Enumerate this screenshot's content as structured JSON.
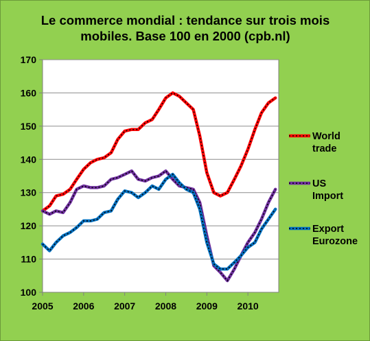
{
  "chart_data": {
    "type": "line",
    "title_line1": "Le commerce mondial : tendance sur trois mois",
    "title_line2": "mobiles. Base 100 en 2000 (cpb.nl)",
    "xlabel": "",
    "ylabel": "",
    "xlim": [
      2005,
      2010.75
    ],
    "ylim": [
      100,
      170
    ],
    "y_ticks": [
      100,
      110,
      120,
      130,
      140,
      150,
      160,
      170
    ],
    "x_ticks": [
      2005,
      2006,
      2007,
      2008,
      2009,
      2010
    ],
    "grid": "horizontal",
    "legend_position": "right",
    "series": [
      {
        "name_line1": "World",
        "name_line2": "trade",
        "color": "#ff0000",
        "points": [
          [
            2005.0,
            124.5
          ],
          [
            2005.17,
            126
          ],
          [
            2005.33,
            129
          ],
          [
            2005.5,
            129.5
          ],
          [
            2005.67,
            131
          ],
          [
            2005.83,
            134
          ],
          [
            2006.0,
            137
          ],
          [
            2006.17,
            139
          ],
          [
            2006.33,
            140
          ],
          [
            2006.5,
            140.5
          ],
          [
            2006.67,
            142
          ],
          [
            2006.83,
            146
          ],
          [
            2007.0,
            148.5
          ],
          [
            2007.17,
            149
          ],
          [
            2007.33,
            149
          ],
          [
            2007.5,
            151
          ],
          [
            2007.67,
            152
          ],
          [
            2007.83,
            155
          ],
          [
            2008.0,
            158.5
          ],
          [
            2008.17,
            160
          ],
          [
            2008.33,
            159
          ],
          [
            2008.5,
            157
          ],
          [
            2008.67,
            155
          ],
          [
            2008.83,
            147
          ],
          [
            2009.0,
            136
          ],
          [
            2009.17,
            130
          ],
          [
            2009.33,
            129
          ],
          [
            2009.5,
            130
          ],
          [
            2009.67,
            134
          ],
          [
            2009.83,
            138
          ],
          [
            2010.0,
            143
          ],
          [
            2010.17,
            149
          ],
          [
            2010.33,
            154
          ],
          [
            2010.5,
            157
          ],
          [
            2010.67,
            158.5
          ]
        ]
      },
      {
        "name_line1": "US",
        "name_line2": "Import",
        "color": "#7030a0",
        "points": [
          [
            2005.0,
            124.5
          ],
          [
            2005.17,
            123.5
          ],
          [
            2005.33,
            124.5
          ],
          [
            2005.5,
            124
          ],
          [
            2005.67,
            127
          ],
          [
            2005.83,
            131
          ],
          [
            2006.0,
            132
          ],
          [
            2006.17,
            131.5
          ],
          [
            2006.33,
            131.5
          ],
          [
            2006.5,
            132
          ],
          [
            2006.67,
            134
          ],
          [
            2006.83,
            134.5
          ],
          [
            2007.0,
            135.5
          ],
          [
            2007.17,
            136.5
          ],
          [
            2007.33,
            134
          ],
          [
            2007.5,
            133.5
          ],
          [
            2007.67,
            134.5
          ],
          [
            2007.83,
            135
          ],
          [
            2008.0,
            136.5
          ],
          [
            2008.17,
            134
          ],
          [
            2008.33,
            132
          ],
          [
            2008.5,
            131.5
          ],
          [
            2008.67,
            131
          ],
          [
            2008.83,
            127
          ],
          [
            2009.0,
            117
          ],
          [
            2009.17,
            108
          ],
          [
            2009.33,
            106
          ],
          [
            2009.5,
            103.5
          ],
          [
            2009.67,
            107
          ],
          [
            2009.83,
            111
          ],
          [
            2010.0,
            115
          ],
          [
            2010.17,
            118
          ],
          [
            2010.33,
            122
          ],
          [
            2010.5,
            127
          ],
          [
            2010.67,
            131
          ]
        ]
      },
      {
        "name_line1": "Export",
        "name_line2": "Eurozone",
        "color": "#0070c0",
        "points": [
          [
            2005.0,
            114.5
          ],
          [
            2005.17,
            112.5
          ],
          [
            2005.33,
            115
          ],
          [
            2005.5,
            117
          ],
          [
            2005.67,
            118
          ],
          [
            2005.83,
            119.5
          ],
          [
            2006.0,
            121.5
          ],
          [
            2006.17,
            121.5
          ],
          [
            2006.33,
            122
          ],
          [
            2006.5,
            124
          ],
          [
            2006.67,
            124.5
          ],
          [
            2006.83,
            128
          ],
          [
            2007.0,
            130.5
          ],
          [
            2007.17,
            130
          ],
          [
            2007.33,
            128.5
          ],
          [
            2007.5,
            130
          ],
          [
            2007.67,
            132
          ],
          [
            2007.83,
            131
          ],
          [
            2008.0,
            134
          ],
          [
            2008.17,
            135.5
          ],
          [
            2008.33,
            133
          ],
          [
            2008.5,
            131
          ],
          [
            2008.67,
            130
          ],
          [
            2008.83,
            125
          ],
          [
            2009.0,
            115
          ],
          [
            2009.17,
            108.5
          ],
          [
            2009.33,
            107
          ],
          [
            2009.5,
            107
          ],
          [
            2009.67,
            109
          ],
          [
            2009.83,
            111
          ],
          [
            2010.0,
            113.5
          ],
          [
            2010.17,
            115
          ],
          [
            2010.33,
            119
          ],
          [
            2010.5,
            122
          ],
          [
            2010.67,
            125
          ]
        ]
      }
    ]
  }
}
